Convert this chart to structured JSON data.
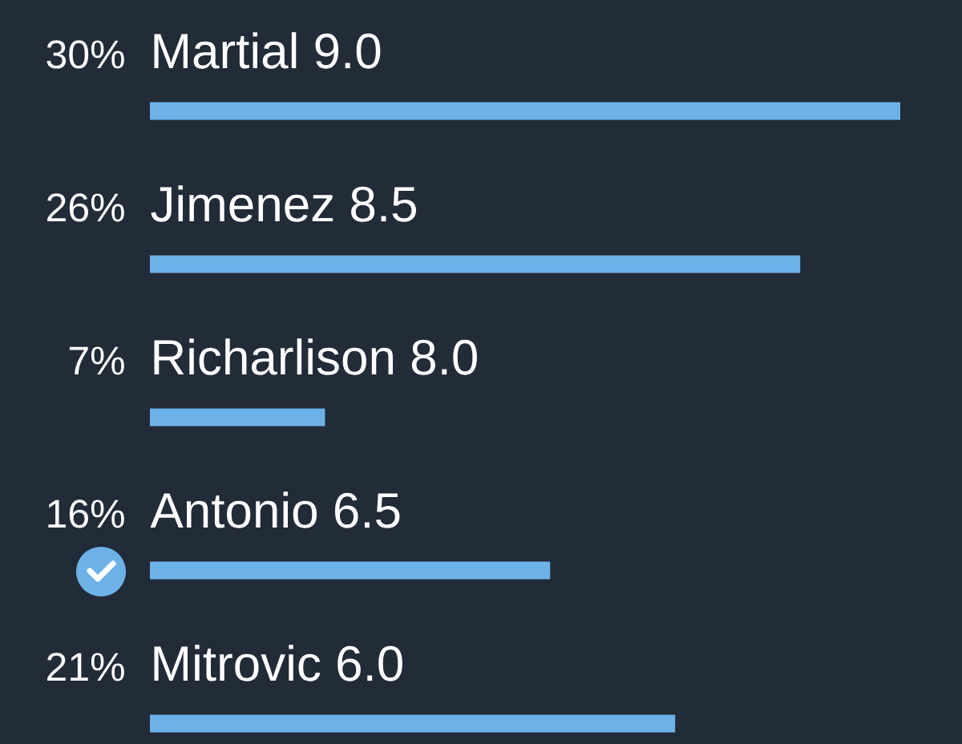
{
  "chart_data": {
    "type": "bar",
    "orientation": "horizontal",
    "categories": [
      "Martial 9.0",
      "Jimenez 8.5",
      "Richarlison 8.0",
      "Antonio 6.5",
      "Mitrovic 6.0"
    ],
    "values": [
      30,
      26,
      7,
      16,
      21
    ],
    "value_labels": [
      "30%",
      "26%",
      "7%",
      "16%",
      "21%"
    ],
    "color": "#6cb2e8",
    "xlim": [
      0,
      30
    ]
  }
}
